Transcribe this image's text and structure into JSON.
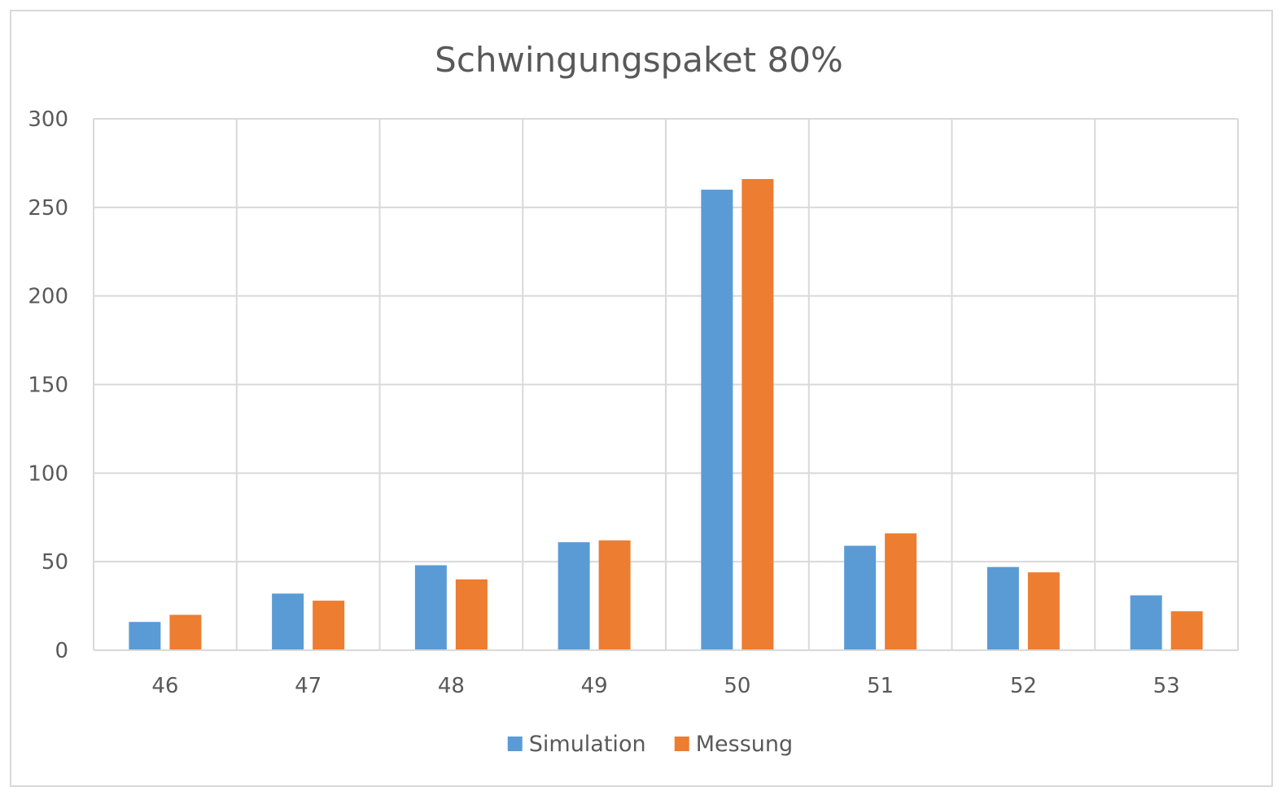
{
  "chart_data": {
    "type": "bar",
    "title": "Schwingungspaket 80%",
    "categories": [
      "46",
      "47",
      "48",
      "49",
      "50",
      "51",
      "52",
      "53"
    ],
    "series": [
      {
        "name": "Simulation",
        "color": "#5b9bd5",
        "values": [
          16,
          32,
          48,
          61,
          260,
          59,
          47,
          31
        ]
      },
      {
        "name": "Messung",
        "color": "#ed7d31",
        "values": [
          20,
          28,
          40,
          62,
          266,
          66,
          44,
          22
        ]
      }
    ],
    "ylim": [
      0,
      300
    ],
    "yticks": [
      0,
      50,
      100,
      150,
      200,
      250,
      300
    ],
    "grid": true,
    "legend": "bottom"
  }
}
